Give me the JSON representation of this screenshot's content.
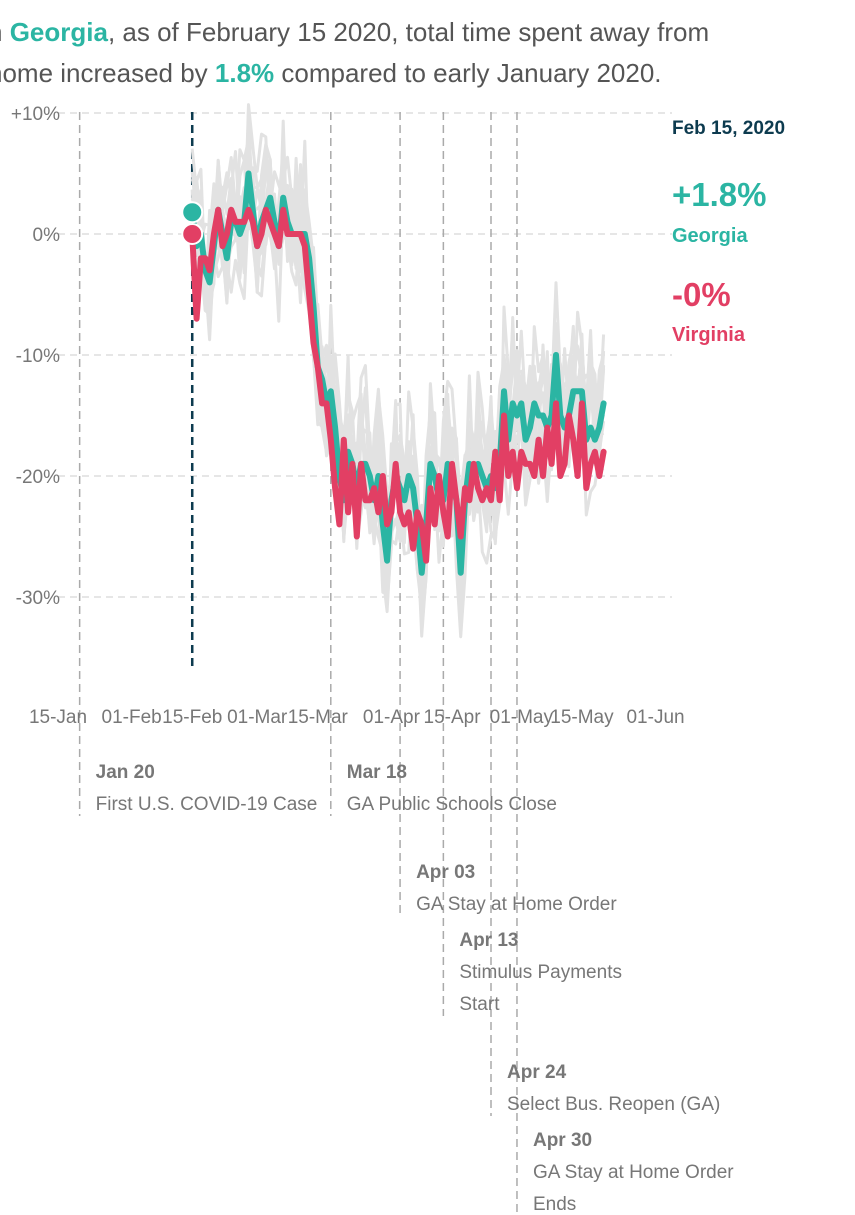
{
  "headline": {
    "part1": "n ",
    "state": "Georgia",
    "part2": ", as of February 15 2020, total time spent away from",
    "part3": "home increased by ",
    "value": "1.8%",
    "part4": " compared to early January 2020."
  },
  "colors": {
    "georgia": "#2bb5a3",
    "virginia": "#e23f64",
    "background_states": "#e2e2e2",
    "current_date_line": "#0d3b4f",
    "event_line": "#aaaaaa",
    "grid": "#dddddd",
    "axis_text": "#777777"
  },
  "chart_data": {
    "type": "line",
    "title": "",
    "xlabel": "",
    "ylabel": "",
    "y_unit": "%",
    "ylim": [
      -36,
      10
    ],
    "xlim": [
      "2020-01-15",
      "2020-06-01"
    ],
    "grid": "horizontal, dashed",
    "x_ticks": [
      "15-Jan",
      "01-Feb",
      "15-Feb",
      "01-Mar",
      "15-Mar",
      "01-Apr",
      "15-Apr",
      "01-May",
      "15-May",
      "01-Jun"
    ],
    "x_tick_dates": [
      "2020-01-15",
      "2020-02-01",
      "2020-02-15",
      "2020-03-01",
      "2020-03-15",
      "2020-04-01",
      "2020-04-15",
      "2020-05-01",
      "2020-05-15",
      "2020-06-01"
    ],
    "y_ticks": [
      10,
      0,
      -10,
      -20,
      -30
    ],
    "y_tick_labels": [
      "+10%",
      "0%",
      "-10%",
      "-20%",
      "-30%"
    ],
    "x_start": "2020-02-15",
    "current_date": "2020-02-15",
    "current_date_label": "Feb 15, 2020",
    "series": [
      {
        "name": "Georgia",
        "label": "Georgia",
        "value_label": "+1.8%",
        "color": "#2bb5a3",
        "values": [
          1.8,
          -1,
          0,
          -3,
          -4,
          -1,
          2,
          0,
          -2,
          1,
          1,
          0,
          1,
          5,
          2,
          -1,
          1,
          2,
          3,
          1,
          -1,
          3,
          1,
          0,
          0,
          0,
          0,
          -2,
          -6,
          -11,
          -12,
          -14,
          -13,
          -16,
          -20,
          -22,
          -18,
          -19,
          -21,
          -19,
          -19,
          -20,
          -22,
          -20,
          -24,
          -27,
          -22,
          -20,
          -21,
          -22,
          -20,
          -21,
          -24,
          -28,
          -24,
          -19,
          -20,
          -22,
          -22,
          -19,
          -20,
          -22,
          -28,
          -22,
          -19,
          -20,
          -19,
          -20,
          -21,
          -20,
          -21,
          -19,
          -13,
          -17,
          -14,
          -15,
          -14,
          -17,
          -16,
          -14,
          -15,
          -15,
          -16,
          -15,
          -10,
          -15,
          -16,
          -15,
          -13,
          -13,
          -13,
          -17,
          -16,
          -17,
          -16,
          -14
        ]
      },
      {
        "name": "Virginia",
        "label": "Virginia",
        "value_label": "-0%",
        "color": "#e23f64",
        "values": [
          0,
          -7,
          -2,
          -2,
          -3,
          0,
          2,
          -1,
          0,
          2,
          1,
          1,
          1,
          2,
          1,
          -1,
          0,
          2,
          1,
          0,
          -1,
          2,
          0,
          0,
          0,
          0,
          -1,
          -5,
          -9,
          -11,
          -14,
          -14,
          -17,
          -21,
          -24,
          -17,
          -23,
          -19,
          -25,
          -19,
          -22,
          -22,
          -21,
          -23,
          -20,
          -24,
          -23,
          -19,
          -23,
          -24,
          -23,
          -26,
          -23,
          -24,
          -27,
          -21,
          -24,
          -20,
          -23,
          -25,
          -19,
          -22,
          -25,
          -21,
          -22,
          -19,
          -21,
          -22,
          -21,
          -22,
          -18,
          -22,
          -15,
          -20,
          -18,
          -21,
          -18,
          -19,
          -19,
          -20,
          -17,
          -20,
          -16,
          -19,
          -14,
          -20,
          -19,
          -15,
          -17,
          -20,
          -14,
          -21,
          -19,
          -18,
          -20,
          -18
        ]
      }
    ],
    "events": [
      {
        "date": "2020-01-20",
        "label": "Jan 20",
        "text": [
          "First U.S. COVID-19 Case"
        ]
      },
      {
        "date": "2020-03-18",
        "label": "Mar 18",
        "text": [
          "GA Public Schools Close"
        ]
      },
      {
        "date": "2020-04-03",
        "label": "Apr 03",
        "text": [
          "GA Stay at Home Order"
        ]
      },
      {
        "date": "2020-04-13",
        "label": "Apr 13",
        "text": [
          "Stimulus Payments",
          "Start"
        ]
      },
      {
        "date": "2020-04-24",
        "label": "Apr 24",
        "text": [
          "Select Bus. Reopen (GA)"
        ]
      },
      {
        "date": "2020-04-30",
        "label": "Apr 30",
        "text": [
          "GA Stay at Home Order",
          "Ends"
        ]
      }
    ]
  }
}
